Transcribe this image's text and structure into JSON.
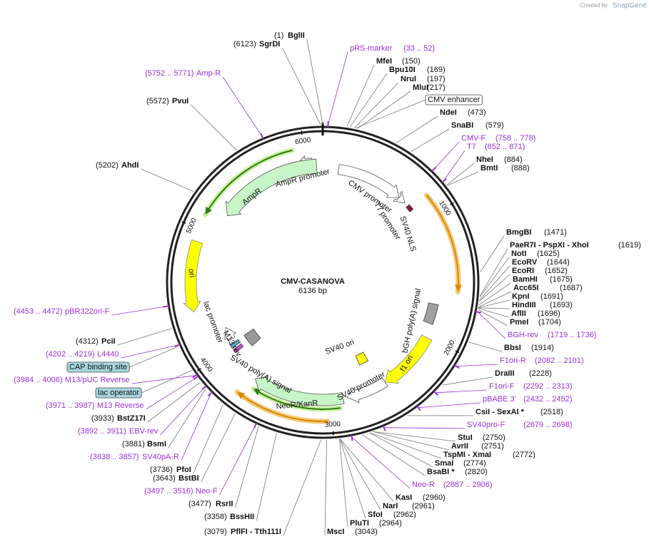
{
  "credit": "Created by",
  "brand": "SnapGene",
  "map": {
    "name": "CMV-CASANOVA",
    "length": "6136 bp"
  },
  "ticks": [
    "1000",
    "2000",
    "3000",
    "4000",
    "5000",
    "6000"
  ],
  "sites": [
    {
      "name": "BglII",
      "position": "(1)"
    },
    {
      "name": "SgrDI",
      "position": "(6123)"
    },
    {
      "name": "MfeI",
      "position": "(150)"
    },
    {
      "name": "Bpu10I",
      "position": "(169)"
    },
    {
      "name": "NruI",
      "position": "(197)"
    },
    {
      "name": "MluI",
      "position": "(217)"
    },
    {
      "name": "NdeI",
      "position": "(473)"
    },
    {
      "name": "SnaBI",
      "position": "(579)"
    },
    {
      "name": "NheI",
      "position": "(884)"
    },
    {
      "name": "BmtI",
      "position": "(888)"
    },
    {
      "name": "BmgBI",
      "position": "(1471)"
    },
    {
      "name": "PaeR7I  - PspXI  - XhoI",
      "position": "(1619)"
    },
    {
      "name": "NotI",
      "position": "(1625)"
    },
    {
      "name": "EcoRV",
      "position": "(1644)"
    },
    {
      "name": "EcoRI",
      "position": "(1652)"
    },
    {
      "name": "BamHI",
      "position": "(1675)"
    },
    {
      "name": "Acc65I",
      "position": "(1687)"
    },
    {
      "name": "KpnI",
      "position": "(1691)"
    },
    {
      "name": "HindIII",
      "position": "(1693)"
    },
    {
      "name": "AflII",
      "position": "(1696)"
    },
    {
      "name": "PmeI",
      "position": "(1704)"
    },
    {
      "name": "BbsI",
      "position": "(1914)"
    },
    {
      "name": "DraIII",
      "position": "(2228)"
    },
    {
      "name": "CsiI  - SexAI *",
      "position": "(2518)"
    },
    {
      "name": "StuI",
      "position": "(2750)"
    },
    {
      "name": "AvrII",
      "position": "(2751)"
    },
    {
      "name": "TspMI  - XmaI",
      "position": "(2772)"
    },
    {
      "name": "SmaI",
      "position": "(2774)"
    },
    {
      "name": "BsaBI *",
      "position": "(2820)"
    },
    {
      "name": "KasI",
      "position": "(2960)"
    },
    {
      "name": "NarI",
      "position": "(2961)"
    },
    {
      "name": "SfoI",
      "position": "(2962)"
    },
    {
      "name": "PluTI",
      "position": "(2964)"
    },
    {
      "name": "MscI",
      "position": "(3043)"
    },
    {
      "name": "PflFI  - Tth111I",
      "position": "(3079)"
    },
    {
      "name": "BssHII",
      "position": "(3358)"
    },
    {
      "name": "RsrII",
      "position": "(3477)"
    },
    {
      "name": "BstBI",
      "position": "(3643)"
    },
    {
      "name": "PfoI",
      "position": "(3736)"
    },
    {
      "name": "BsmI",
      "position": "(3881)"
    },
    {
      "name": "BstZ17I",
      "position": "(3933)"
    },
    {
      "name": "PciI",
      "position": "(4312)"
    },
    {
      "name": "AhdI",
      "position": "(5202)"
    },
    {
      "name": "PvuI",
      "position": "(5572)"
    }
  ],
  "primers": [
    {
      "name": "pRS-marker",
      "range": "(33 .. 52)"
    },
    {
      "name": "CMV-F",
      "range": "(758 .. 778)"
    },
    {
      "name": "T7",
      "range": "(852 .. 871)"
    },
    {
      "name": "BGH-rev",
      "range": "(1719 .. 1736)"
    },
    {
      "name": "F1ori-R",
      "range": "(2082 .. 2101)"
    },
    {
      "name": "F1ori-F",
      "range": "(2292 .. 2313)"
    },
    {
      "name": "pBABE 3'",
      "range": "(2432 .. 2452)"
    },
    {
      "name": "SV40pro-F",
      "range": "(2679 .. 2698)"
    },
    {
      "name": "Neo-R",
      "range": "(2887 .. 2906)"
    },
    {
      "name": "Neo-F",
      "range": "(3497 .. 3516)"
    },
    {
      "name": "SV40pA-R",
      "range": "(3838 .. 3857)"
    },
    {
      "name": "EBV-rev",
      "range": "(3892 .. 3911)"
    },
    {
      "name": "M13 Reverse",
      "range": "(3971 .. 3987)"
    },
    {
      "name": "M13/pUC Reverse",
      "range": "(3984 .. 4006)"
    },
    {
      "name": "L4440",
      "range": "(4202 .. 4219)"
    },
    {
      "name": "pBR322ori-F",
      "range": "(4453 .. 4472)"
    },
    {
      "name": "Amp-R",
      "range": "(5752 .. 5771)"
    }
  ],
  "boxed": [
    "CMV enhancer",
    "CAP binding site",
    "lac operator"
  ],
  "features": [
    "CMV promoter",
    "T7 promoter",
    "SV40 NLS",
    "AmpR promoter",
    "AmpR",
    "ori",
    "lac promoter",
    "M13 rev",
    "SV40 poly(A) signal",
    "NeoR/KanR",
    "SV40 promoter",
    "f1 ori",
    "bGH poly(A) signal",
    "SV40 ori"
  ]
}
